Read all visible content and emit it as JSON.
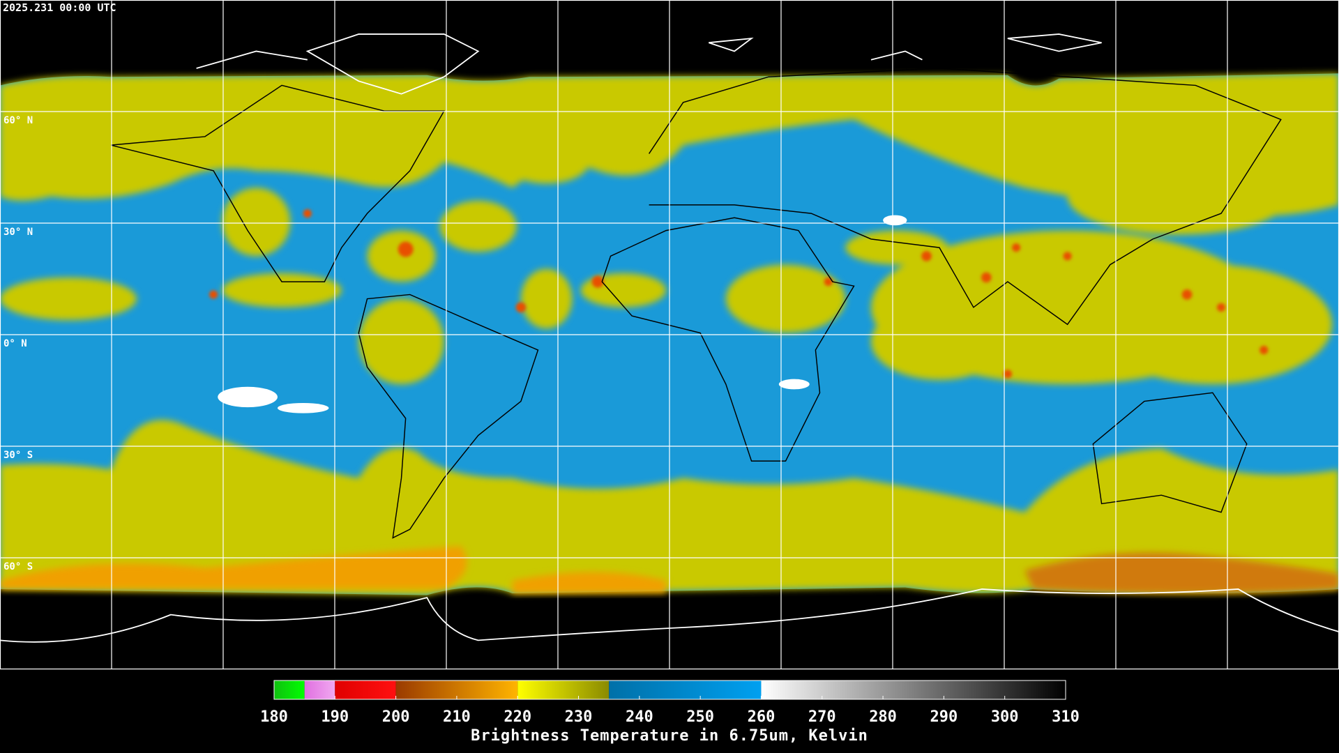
{
  "header": {
    "timestamp": "2025.231 00:00 UTC"
  },
  "map": {
    "lon_range": [
      -180,
      180
    ],
    "lat_range": [
      90,
      -90
    ],
    "latitudes": [
      {
        "value": 60,
        "label": "60° N"
      },
      {
        "value": 30,
        "label": "30° N"
      },
      {
        "value": 0,
        "label": "0° N"
      },
      {
        "value": -30,
        "label": "30° S"
      },
      {
        "value": -60,
        "label": "60° S"
      }
    ],
    "longitudes": [
      -150,
      -120,
      -90,
      -60,
      -30,
      0,
      30,
      60,
      90,
      120,
      150
    ]
  },
  "colorbar": {
    "range": [
      180,
      310
    ],
    "ticks": [
      180,
      190,
      200,
      210,
      220,
      230,
      240,
      250,
      260,
      270,
      280,
      290,
      300,
      310
    ],
    "segments": [
      {
        "from": 180,
        "to": 185,
        "colors": [
          "#10c010",
          "#00ff00"
        ]
      },
      {
        "from": 185,
        "to": 190,
        "colors": [
          "#e070e0",
          "#f0a8f0"
        ]
      },
      {
        "from": 190,
        "to": 200,
        "colors": [
          "#e00000",
          "#ff1010"
        ]
      },
      {
        "from": 200,
        "to": 220,
        "colors": [
          "#9a3a00",
          "#ffb400"
        ]
      },
      {
        "from": 220,
        "to": 235,
        "colors": [
          "#ffff00",
          "#8a8a00"
        ]
      },
      {
        "from": 235,
        "to": 260,
        "colors": [
          "#0070a8",
          "#00a0f0"
        ]
      },
      {
        "from": 260,
        "to": 310,
        "colors": [
          "#ffffff",
          "#000000"
        ]
      }
    ],
    "title": "Brightness Temperature in 6.75um, Kelvin"
  }
}
